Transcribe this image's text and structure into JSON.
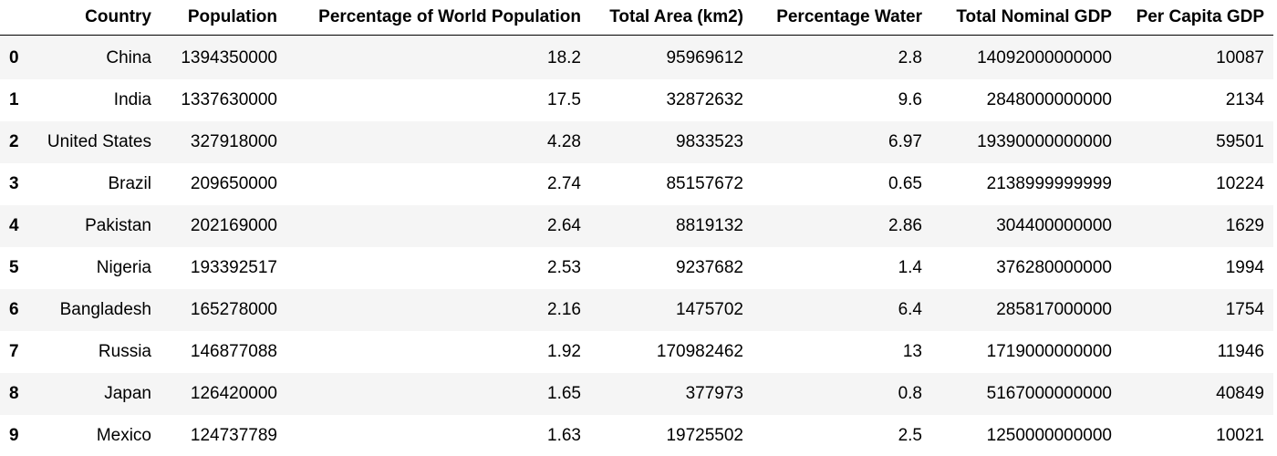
{
  "table": {
    "columns": [
      "Country",
      "Population",
      "Percentage of World Population",
      "Total Area (km2)",
      "Percentage Water",
      "Total Nominal GDP",
      "Per Capita GDP"
    ],
    "rows": [
      {
        "index": "0",
        "cells": [
          "China",
          "1394350000",
          "18.2",
          "95969612",
          "2.8",
          "14092000000000",
          "10087"
        ]
      },
      {
        "index": "1",
        "cells": [
          "India",
          "1337630000",
          "17.5",
          "32872632",
          "9.6",
          "2848000000000",
          "2134"
        ]
      },
      {
        "index": "2",
        "cells": [
          "United States",
          "327918000",
          "4.28",
          "9833523",
          "6.97",
          "19390000000000",
          "59501"
        ]
      },
      {
        "index": "3",
        "cells": [
          "Brazil",
          "209650000",
          "2.74",
          "85157672",
          "0.65",
          "2138999999999",
          "10224"
        ]
      },
      {
        "index": "4",
        "cells": [
          "Pakistan",
          "202169000",
          "2.64",
          "8819132",
          "2.86",
          "304400000000",
          "1629"
        ]
      },
      {
        "index": "5",
        "cells": [
          "Nigeria",
          "193392517",
          "2.53",
          "9237682",
          "1.4",
          "376280000000",
          "1994"
        ]
      },
      {
        "index": "6",
        "cells": [
          "Bangladesh",
          "165278000",
          "2.16",
          "1475702",
          "6.4",
          "285817000000",
          "1754"
        ]
      },
      {
        "index": "7",
        "cells": [
          "Russia",
          "146877088",
          "1.92",
          "170982462",
          "13",
          "1719000000000",
          "11946"
        ]
      },
      {
        "index": "8",
        "cells": [
          "Japan",
          "126420000",
          "1.65",
          "377973",
          "0.8",
          "5167000000000",
          "40849"
        ]
      },
      {
        "index": "9",
        "cells": [
          "Mexico",
          "124737789",
          "1.63",
          "19725502",
          "2.5",
          "1250000000000",
          "10021"
        ]
      }
    ]
  },
  "colors": {
    "stripe": "#f5f5f5",
    "background": "#ffffff",
    "text": "#000000",
    "header_rule": "#000000"
  }
}
